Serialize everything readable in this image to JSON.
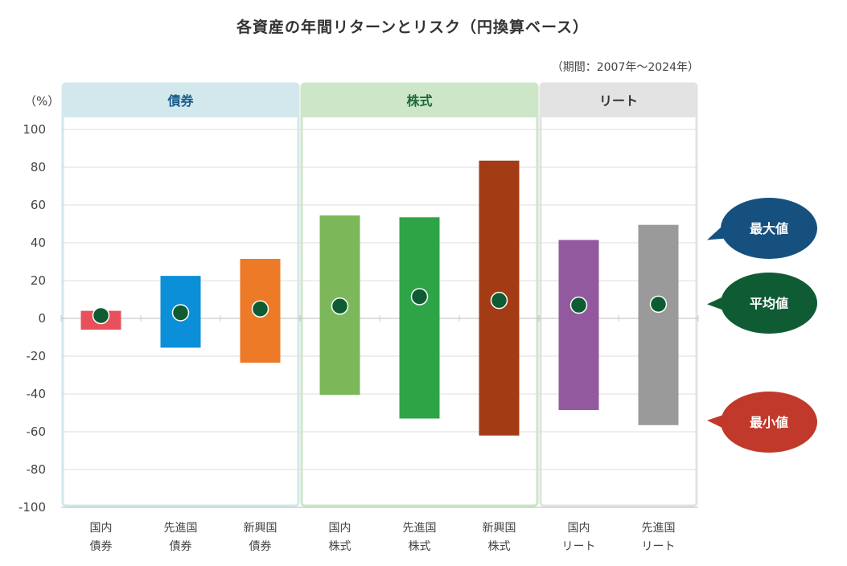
{
  "title": "各資産の年間リターンとリスク（円換算ベース）",
  "period": "（期間：2007年～2024年）",
  "legend": {
    "max_label": "最大値",
    "mean_label": "平均値",
    "min_label": "最小値",
    "max_color": "#16507f",
    "mean_color": "#0f5c34",
    "min_color": "#c0392b"
  },
  "chart_data": {
    "type": "range-bar",
    "title": "各資産の年間リターンとリスク（円換算ベース）",
    "ylabel": "（%）",
    "ylim": [
      -100,
      100
    ],
    "yticks": [
      100,
      80,
      60,
      40,
      20,
      0,
      -20,
      -40,
      -60,
      -80,
      -100
    ],
    "groups": [
      {
        "name": "債券",
        "header_color": "#d2e8ec",
        "text_color": "#1a5a8a",
        "border_color": "#d2e8ec",
        "count": 3
      },
      {
        "name": "株式",
        "header_color": "#cde6c8",
        "text_color": "#1f6b3a",
        "border_color": "#cde6c8",
        "count": 3
      },
      {
        "name": "リート",
        "header_color": "#e3e3e3",
        "text_color": "#333333",
        "border_color": "#e3e3e3",
        "count": 2
      }
    ],
    "categories": [
      {
        "line1": "国内",
        "line2": "債券",
        "max": 4,
        "mean": 1.5,
        "min": -6,
        "color": "#e8505b"
      },
      {
        "line1": "先進国",
        "line2": "債券",
        "max": 22.5,
        "mean": 3,
        "min": -15.5,
        "color": "#0b8fd8"
      },
      {
        "line1": "新興国",
        "line2": "債券",
        "max": 31.5,
        "mean": 5,
        "min": -23.5,
        "color": "#ec7a27"
      },
      {
        "line1": "国内",
        "line2": "株式",
        "max": 54.5,
        "mean": 6.5,
        "min": -40.5,
        "color": "#7cb85a"
      },
      {
        "line1": "先進国",
        "line2": "株式",
        "max": 53.5,
        "mean": 11.5,
        "min": -53,
        "color": "#2ea446"
      },
      {
        "line1": "新興国",
        "line2": "株式",
        "max": 83.5,
        "mean": 9.5,
        "min": -62,
        "color": "#a33b14"
      },
      {
        "line1": "国内",
        "line2": "リート",
        "max": 41.5,
        "mean": 7,
        "min": -48.5,
        "color": "#93599e"
      },
      {
        "line1": "先進国",
        "line2": "リート",
        "max": 49.5,
        "mean": 7.5,
        "min": -56.5,
        "color": "#9a9a9a"
      }
    ],
    "mean_marker_color": "#0f5c34"
  }
}
